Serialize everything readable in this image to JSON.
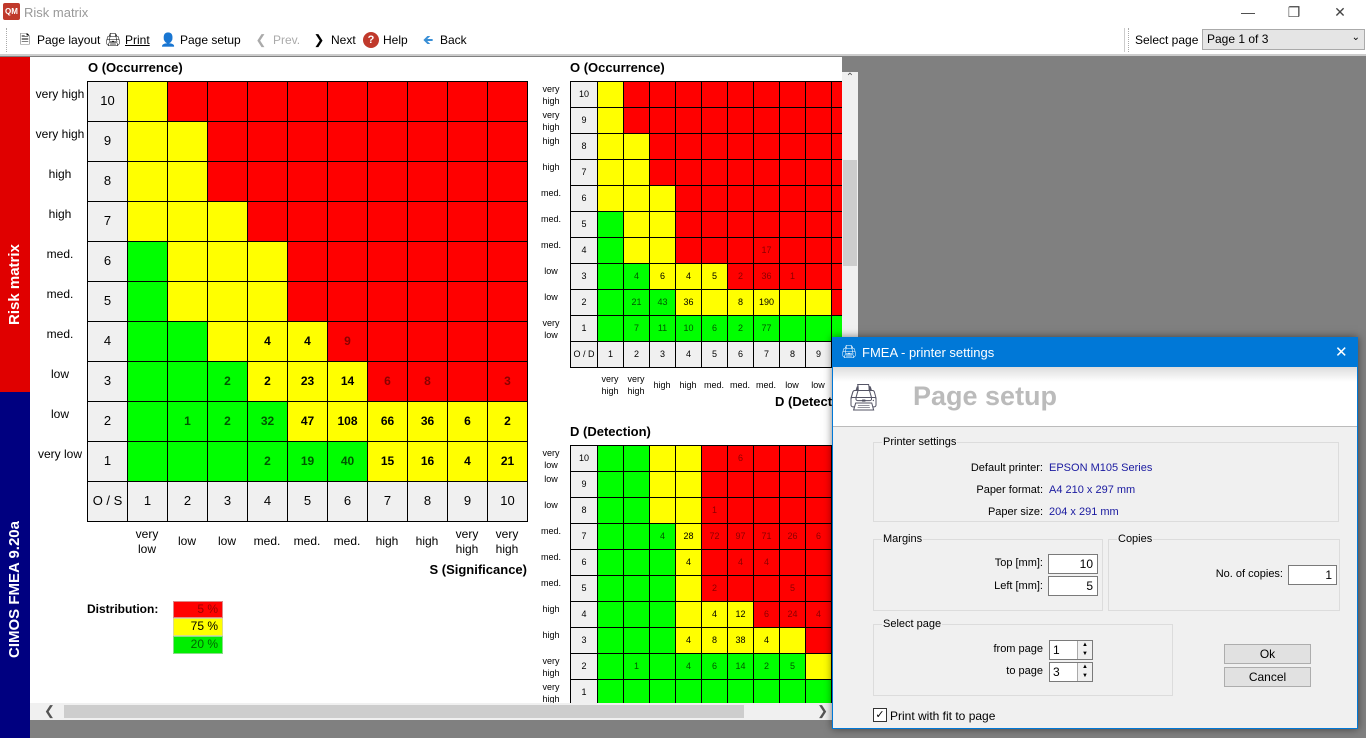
{
  "window": {
    "title": "Risk matrix",
    "app_icon": "QM"
  },
  "toolbar": {
    "page_layout": "Page layout",
    "print": "Print",
    "page_setup": "Page setup",
    "prev": "Prev.",
    "next": "Next",
    "help": "Help",
    "back": "Back",
    "select_page_label": "Select page",
    "select_page_value": "Page 1 of 3"
  },
  "sidebar": {
    "tab_top": "Risk matrix",
    "tab_bottom": "CIMOS FMEA 9.20a"
  },
  "colors": {
    "R": "#ff0000",
    "Y": "#ffff00",
    "G": "#00ff00",
    "header": "#f0f0f0",
    "dialog_title": "#0078d7"
  },
  "main_matrix": {
    "title": "O (Occurrence)",
    "x_title": "S (Significance)",
    "corner": "O / S",
    "row_ids": [
      "10",
      "9",
      "8",
      "7",
      "6",
      "5",
      "4",
      "3",
      "2",
      "1"
    ],
    "row_labels": [
      "very high",
      "very high",
      "high",
      "high",
      "med.",
      "med.",
      "med.",
      "low",
      "low",
      "very low"
    ],
    "col_ids": [
      "1",
      "2",
      "3",
      "4",
      "5",
      "6",
      "7",
      "8",
      "9",
      "10"
    ],
    "col_labels": [
      "very low",
      "low",
      "low",
      "med.",
      "med.",
      "med.",
      "high",
      "high",
      "very high",
      "very high"
    ],
    "colors": [
      "YRRRRRRRRR",
      "YYRRRRRRRR",
      "YYRRRRRRRR",
      "YYYRRRRRRR",
      "GYYYRRRRRR",
      "GYYYRRRRRR",
      "GGYYYRRRRR",
      "GGGYYYRRRR",
      "GGGGYYYYYY",
      "GGGGGGYYYY"
    ],
    "values": [
      [
        "",
        "",
        "",
        "",
        "",
        "",
        "",
        "",
        "",
        ""
      ],
      [
        "",
        "",
        "",
        "",
        "",
        "",
        "",
        "",
        "",
        ""
      ],
      [
        "",
        "",
        "",
        "",
        "",
        "",
        "",
        "",
        "",
        ""
      ],
      [
        "",
        "",
        "",
        "",
        "",
        "",
        "",
        "",
        "",
        ""
      ],
      [
        "",
        "",
        "",
        "",
        "",
        "",
        "",
        "",
        "",
        ""
      ],
      [
        "",
        "",
        "",
        "",
        "",
        "",
        "",
        "",
        "",
        ""
      ],
      [
        "",
        "",
        "",
        "4",
        "4",
        "9",
        "",
        "",
        "",
        ""
      ],
      [
        "",
        "",
        "2",
        "2",
        "23",
        "14",
        "6",
        "8",
        "",
        "3"
      ],
      [
        "",
        "1",
        "2",
        "32",
        "47",
        "108",
        "66",
        "36",
        "6",
        "2"
      ],
      [
        "",
        "",
        "",
        "2",
        "19",
        "40",
        "15",
        "16",
        "4",
        "21"
      ]
    ]
  },
  "distribution": {
    "label": "Distribution:",
    "red": "5 %",
    "yellow": "75 %",
    "green": "20 %"
  },
  "od_matrix": {
    "title": "O (Occurrence)",
    "x_title": "D (Detect",
    "corner": "O / D",
    "row_ids": [
      "10",
      "9",
      "8",
      "7",
      "6",
      "5",
      "4",
      "3",
      "2",
      "1"
    ],
    "row_labels": [
      "very high",
      "very high",
      "high",
      "high",
      "med.",
      "med.",
      "med.",
      "low",
      "low",
      "very low"
    ],
    "col_ids": [
      "1",
      "2",
      "3",
      "4",
      "5",
      "6",
      "7",
      "8",
      "9",
      "10"
    ],
    "col_labels": [
      "very high",
      "very high",
      "high",
      "high",
      "med.",
      "med.",
      "med.",
      "low",
      "low",
      ""
    ],
    "colors": [
      "YRRRRRRRRR",
      "YRRRRRRRRR",
      "YYRRRRRRRR",
      "YYRRRRRRRR",
      "YYYRRRRRRR",
      "GYYRRRRRRR",
      "GYYRRRRRRR",
      "GGYYYRRRRR",
      "GGGYYYYYYR",
      "GGGGGGGGGG"
    ],
    "values": [
      [
        "",
        "",
        "",
        "",
        "",
        "",
        "",
        "",
        "",
        ""
      ],
      [
        "",
        "",
        "",
        "",
        "",
        "",
        "",
        "",
        "",
        ""
      ],
      [
        "",
        "",
        "",
        "",
        "",
        "",
        "",
        "",
        "",
        ""
      ],
      [
        "",
        "",
        "",
        "",
        "",
        "",
        "",
        "",
        "",
        ""
      ],
      [
        "",
        "",
        "",
        "",
        "",
        "",
        "",
        "",
        "",
        ""
      ],
      [
        "",
        "",
        "",
        "",
        "",
        "",
        "",
        "",
        "",
        ""
      ],
      [
        "",
        "",
        "",
        "",
        "",
        "",
        "17",
        "",
        "",
        ""
      ],
      [
        "",
        "4",
        "6",
        "4",
        "5",
        "2",
        "36",
        "1",
        "",
        ""
      ],
      [
        "",
        "21",
        "43",
        "36",
        "",
        "8",
        "190",
        "",
        "",
        "2"
      ],
      [
        "",
        "7",
        "11",
        "10",
        "6",
        "2",
        "77",
        "",
        "",
        "4"
      ]
    ]
  },
  "d_matrix": {
    "title": "D (Detection)",
    "row_ids": [
      "10",
      "9",
      "8",
      "7",
      "6",
      "5",
      "4",
      "3",
      "2",
      "1"
    ],
    "row_labels": [
      "very low",
      "low",
      "low",
      "med.",
      "med.",
      "med.",
      "high",
      "high",
      "very high",
      "very high"
    ],
    "colors": [
      "GGYYRRRRR",
      "GGYYRRRRR",
      "GGYYRRRRR",
      "GGGYRRRRR",
      "GGGYRRRRR",
      "GGGYRRRRR",
      "GGGYYYRRR",
      "GGGYYYYYR",
      "GGGGGGGGY",
      "GGGGGGGGG"
    ],
    "values": [
      [
        "",
        "",
        "",
        "",
        "",
        "6",
        "",
        "",
        ""
      ],
      [
        "",
        "",
        "",
        "",
        "",
        "",
        "",
        "",
        ""
      ],
      [
        "",
        "",
        "",
        "",
        "1",
        "",
        "",
        "",
        ""
      ],
      [
        "",
        "",
        "4",
        "28",
        "72",
        "97",
        "71",
        "26",
        "6"
      ],
      [
        "",
        "",
        "",
        "4",
        "",
        "4",
        "4",
        "",
        ""
      ],
      [
        "",
        "",
        "",
        "",
        "2",
        "",
        "",
        "5",
        ""
      ],
      [
        "",
        "",
        "",
        "",
        "4",
        "12",
        "6",
        "24",
        "4"
      ],
      [
        "",
        "",
        "",
        "4",
        "8",
        "38",
        "4",
        "",
        ""
      ],
      [
        "",
        "1",
        "",
        "4",
        "6",
        "14",
        "2",
        "5",
        ""
      ],
      [
        "",
        "",
        "",
        "",
        "",
        "",
        "",
        "",
        ""
      ]
    ]
  },
  "dialog": {
    "title": "FMEA - printer settings",
    "header": "Page setup",
    "printer_group": "Printer settings",
    "default_printer_label": "Default printer:",
    "default_printer": "EPSON M105 Series",
    "paper_format_label": "Paper format:",
    "paper_format": "A4 210 x 297 mm",
    "paper_size_label": "Paper size:",
    "paper_size": "204 x 291 mm",
    "margins_group": "Margins",
    "top_label": "Top [mm]:",
    "top_value": "10",
    "left_label": "Left [mm]:",
    "left_value": "5",
    "copies_group": "Copies",
    "copies_label": "No. of copies:",
    "copies_value": "1",
    "select_group": "Select page",
    "from_label": "from page",
    "from_value": "1",
    "to_label": "to page",
    "to_value": "3",
    "ok": "Ok",
    "cancel": "Cancel",
    "fit_label": "Print with fit to page",
    "fit_checked": true
  }
}
